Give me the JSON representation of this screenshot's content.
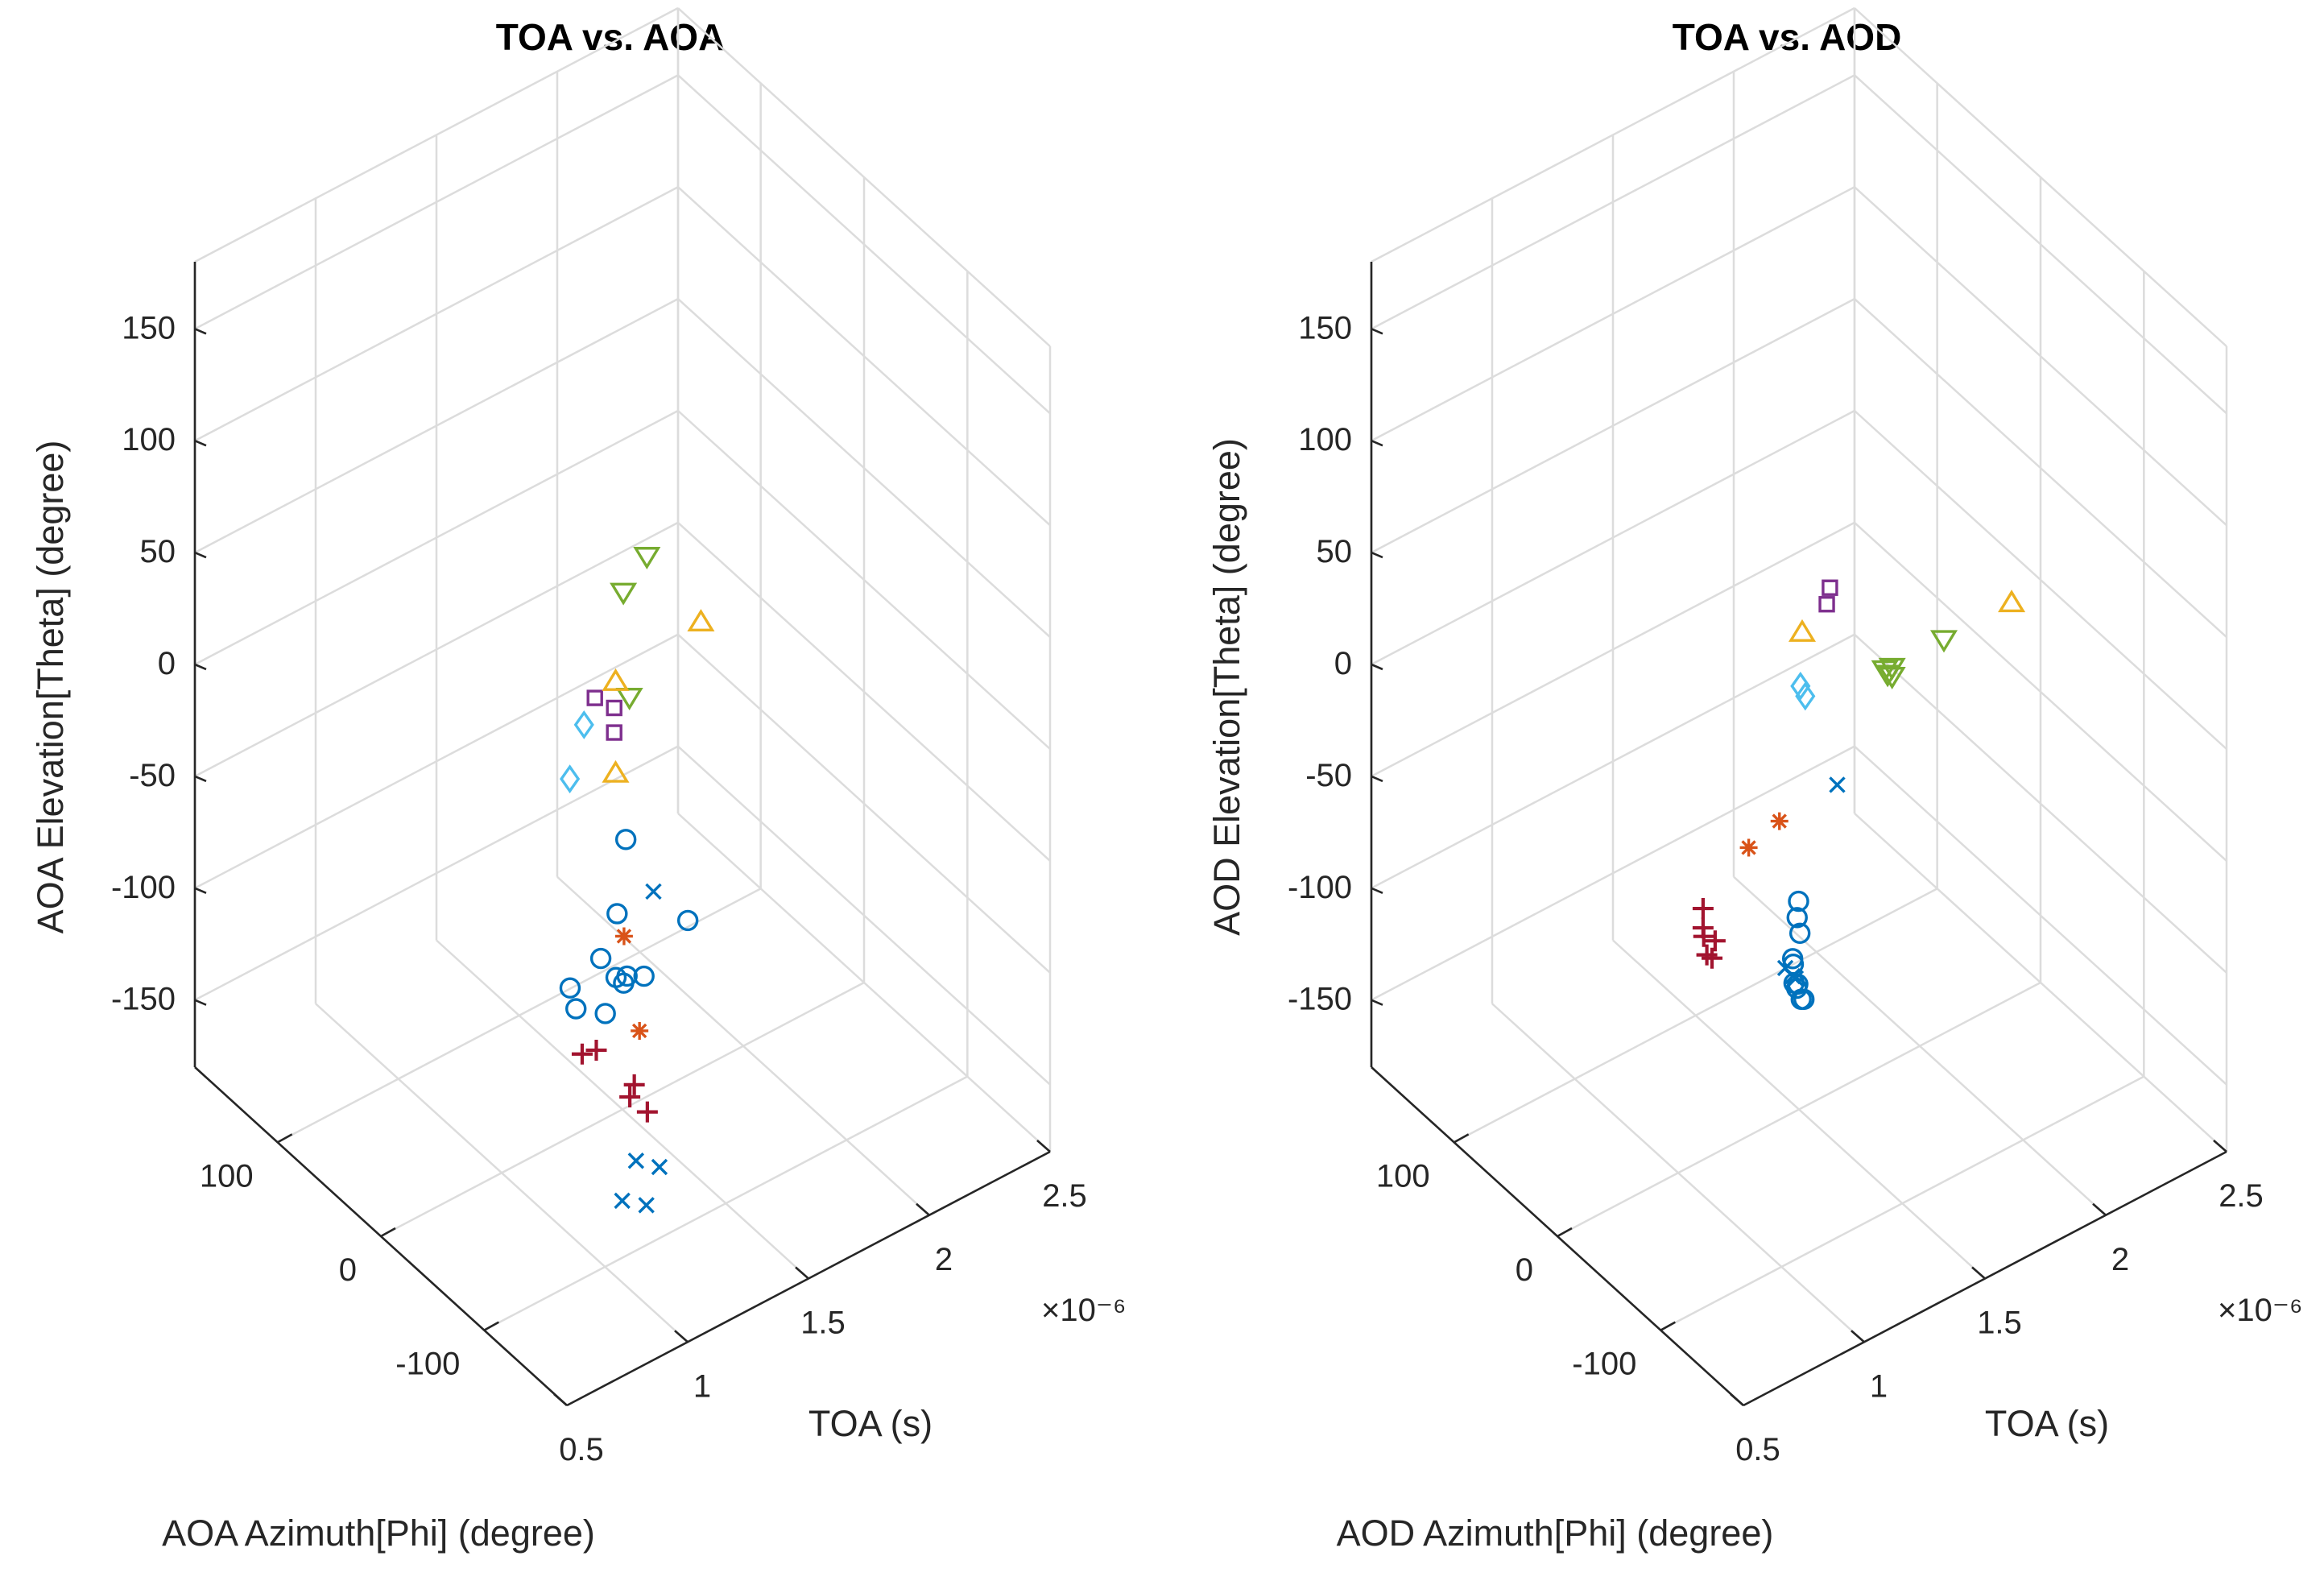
{
  "chart_data": [
    {
      "type": "scatter3d",
      "title": "TOA vs. AOA",
      "xlabel": "AOA Azimuth[Phi] (degree)",
      "ylabel": "TOA (s)",
      "zlabel": "AOA Elevation[Theta] (degree)",
      "xlim": [
        -180,
        180
      ],
      "ylim": [
        0.5,
        2.5
      ],
      "zlim": [
        -180,
        180
      ],
      "x_ticks": [
        "100",
        "0",
        "-100"
      ],
      "y_ticks": [
        "0.5",
        "1",
        "1.5",
        "2",
        "2.5"
      ],
      "y_exponent": "×10⁻⁶",
      "z_ticks": [
        "150",
        "100",
        "50",
        "0",
        "-50",
        "-100",
        "-150"
      ],
      "series": [
        {
          "name": "path-group-1",
          "marker": "circle",
          "color": "#0072BD",
          "points": [
            [
              -141,
              0.68,
              -20
            ],
            [
              -138,
              0.82,
              -16
            ],
            [
              -142,
              0.7,
              -30
            ],
            [
              -126,
              1.05,
              -42
            ],
            [
              -110,
              1.3,
              -38
            ],
            [
              -50,
              1.3,
              -27
            ],
            [
              -100,
              1.05,
              -25
            ],
            [
              -125,
              0.97,
              -41
            ],
            [
              -120,
              0.96,
              -40
            ],
            [
              -133,
              0.86,
              -45
            ],
            [
              -126,
              0.98,
              -38
            ]
          ]
        },
        {
          "name": "path-group-2",
          "marker": "x",
          "color": "#0072BD",
          "points": [
            [
              -140,
              0.9,
              -128
            ],
            [
              -147,
              0.97,
              -131
            ],
            [
              -141,
              1.05,
              -121
            ],
            [
              -130,
              1.0,
              -120
            ],
            [
              -30,
              1.5,
              -70
            ]
          ]
        },
        {
          "name": "path-group-3",
          "marker": "plus",
          "color": "#A2142F",
          "points": [
            [
              -150,
              0.75,
              -48
            ],
            [
              -134,
              0.76,
              -57
            ],
            [
              -169,
              0.88,
              -75
            ],
            [
              -140,
              0.95,
              -79
            ],
            [
              -124,
              1.0,
              -94
            ]
          ]
        },
        {
          "name": "path-group-4",
          "marker": "star",
          "color": "#D95319",
          "points": [
            [
              -95,
              1.1,
              -40
            ],
            [
              -110,
              1.1,
              -76
            ]
          ]
        },
        {
          "name": "path-group-5",
          "marker": "diamond",
          "color": "#4DBEEE",
          "points": [
            [
              -101,
              0.85,
              47
            ],
            [
              -68,
              1.05,
              46
            ]
          ]
        },
        {
          "name": "path-group-6",
          "marker": "square",
          "color": "#7E2F8E",
          "points": [
            [
              -179,
              0.7,
              109
            ],
            [
              -179,
              0.62,
              129
            ],
            [
              -179,
              0.7,
              120
            ]
          ]
        },
        {
          "name": "path-group-7",
          "marker": "triangle-down",
          "color": "#77AC30",
          "points": [
            [
              -147,
              0.9,
              100
            ],
            [
              -71,
              1.2,
              98
            ],
            [
              -40,
              1.43,
              88
            ]
          ]
        },
        {
          "name": "path-group-8",
          "marker": "triangle-up",
          "color": "#EDB120",
          "points": [
            [
              30,
              1.6,
              -7
            ],
            [
              30,
              1.6,
              -48
            ],
            [
              55,
              2.06,
              -17
            ]
          ]
        }
      ]
    },
    {
      "type": "scatter3d",
      "title": "TOA vs. AOD",
      "xlabel": "AOD Azimuth[Phi] (degree)",
      "ylabel": "TOA (s)",
      "zlabel": "AOD Elevation[Theta] (degree)",
      "xlim": [
        -180,
        180
      ],
      "ylim": [
        0.5,
        2.5
      ],
      "zlim": [
        -180,
        180
      ],
      "x_ticks": [
        "100",
        "0",
        "-100"
      ],
      "y_ticks": [
        "0.5",
        "1",
        "1.5",
        "2",
        "2.5"
      ],
      "y_exponent": "×10⁻⁶",
      "z_ticks": [
        "150",
        "100",
        "50",
        "0",
        "-50",
        "-100",
        "-150"
      ],
      "series": [
        {
          "name": "path-group-1",
          "marker": "circle",
          "color": "#0072BD",
          "points": [
            [
              -89,
              1.14,
              -73
            ],
            [
              -91,
              1.12,
              -71
            ],
            [
              -82,
              1.14,
              -71
            ],
            [
              -69,
              1.2,
              -78
            ],
            [
              -70,
              1.18,
              -76
            ],
            [
              -60,
              1.22,
              -74
            ],
            [
              -45,
              1.3,
              -64
            ],
            [
              -30,
              1.37,
              -67
            ],
            [
              -43,
              1.32,
              -73
            ],
            [
              -50,
              1.26,
              -78
            ]
          ]
        },
        {
          "name": "path-group-2",
          "marker": "x",
          "color": "#0072BD",
          "points": [
            [
              -99,
              1.02,
              -48
            ],
            [
              -92,
              1.08,
              -58
            ],
            [
              -30,
              1.53,
              -24
            ],
            [
              -81,
              1.14,
              -67
            ]
          ]
        },
        {
          "name": "path-group-3",
          "marker": "plus",
          "color": "#A2142F",
          "points": [
            [
              -165,
              0.4,
              29
            ],
            [
              -169,
              0.43,
              27
            ],
            [
              -162,
              0.41,
              31
            ],
            [
              -168,
              0.4,
              22
            ],
            [
              -166,
              0.43,
              18
            ],
            [
              -155,
              0.44,
              35
            ]
          ]
        },
        {
          "name": "path-group-4",
          "marker": "star",
          "color": "#D95319",
          "points": [
            [
              -115,
              0.8,
              25
            ],
            [
              -105,
              0.97,
              23
            ]
          ]
        },
        {
          "name": "path-group-5",
          "marker": "diamond",
          "color": "#4DBEEE",
          "points": [
            [
              -137,
              0.94,
              94
            ],
            [
              -130,
              0.95,
              95
            ]
          ]
        },
        {
          "name": "path-group-6",
          "marker": "square",
          "color": "#7E2F8E",
          "points": [
            [
              -65,
              1.35,
              89
            ],
            [
              -69,
              1.32,
              85
            ]
          ]
        },
        {
          "name": "path-group-7",
          "marker": "triangle-down",
          "color": "#77AC30",
          "points": [
            [
              -20,
              1.8,
              9
            ],
            [
              -20,
              1.8,
              5
            ],
            [
              -13,
              1.8,
              5
            ],
            [
              -11,
              1.82,
              1
            ],
            [
              0,
              2.1,
              -4
            ]
          ]
        },
        {
          "name": "path-group-8",
          "marker": "triangle-up",
          "color": "#EDB120",
          "points": [
            [
              -120,
              1.0,
              112
            ],
            [
              28,
              2.5,
              -22
            ]
          ]
        }
      ]
    }
  ]
}
